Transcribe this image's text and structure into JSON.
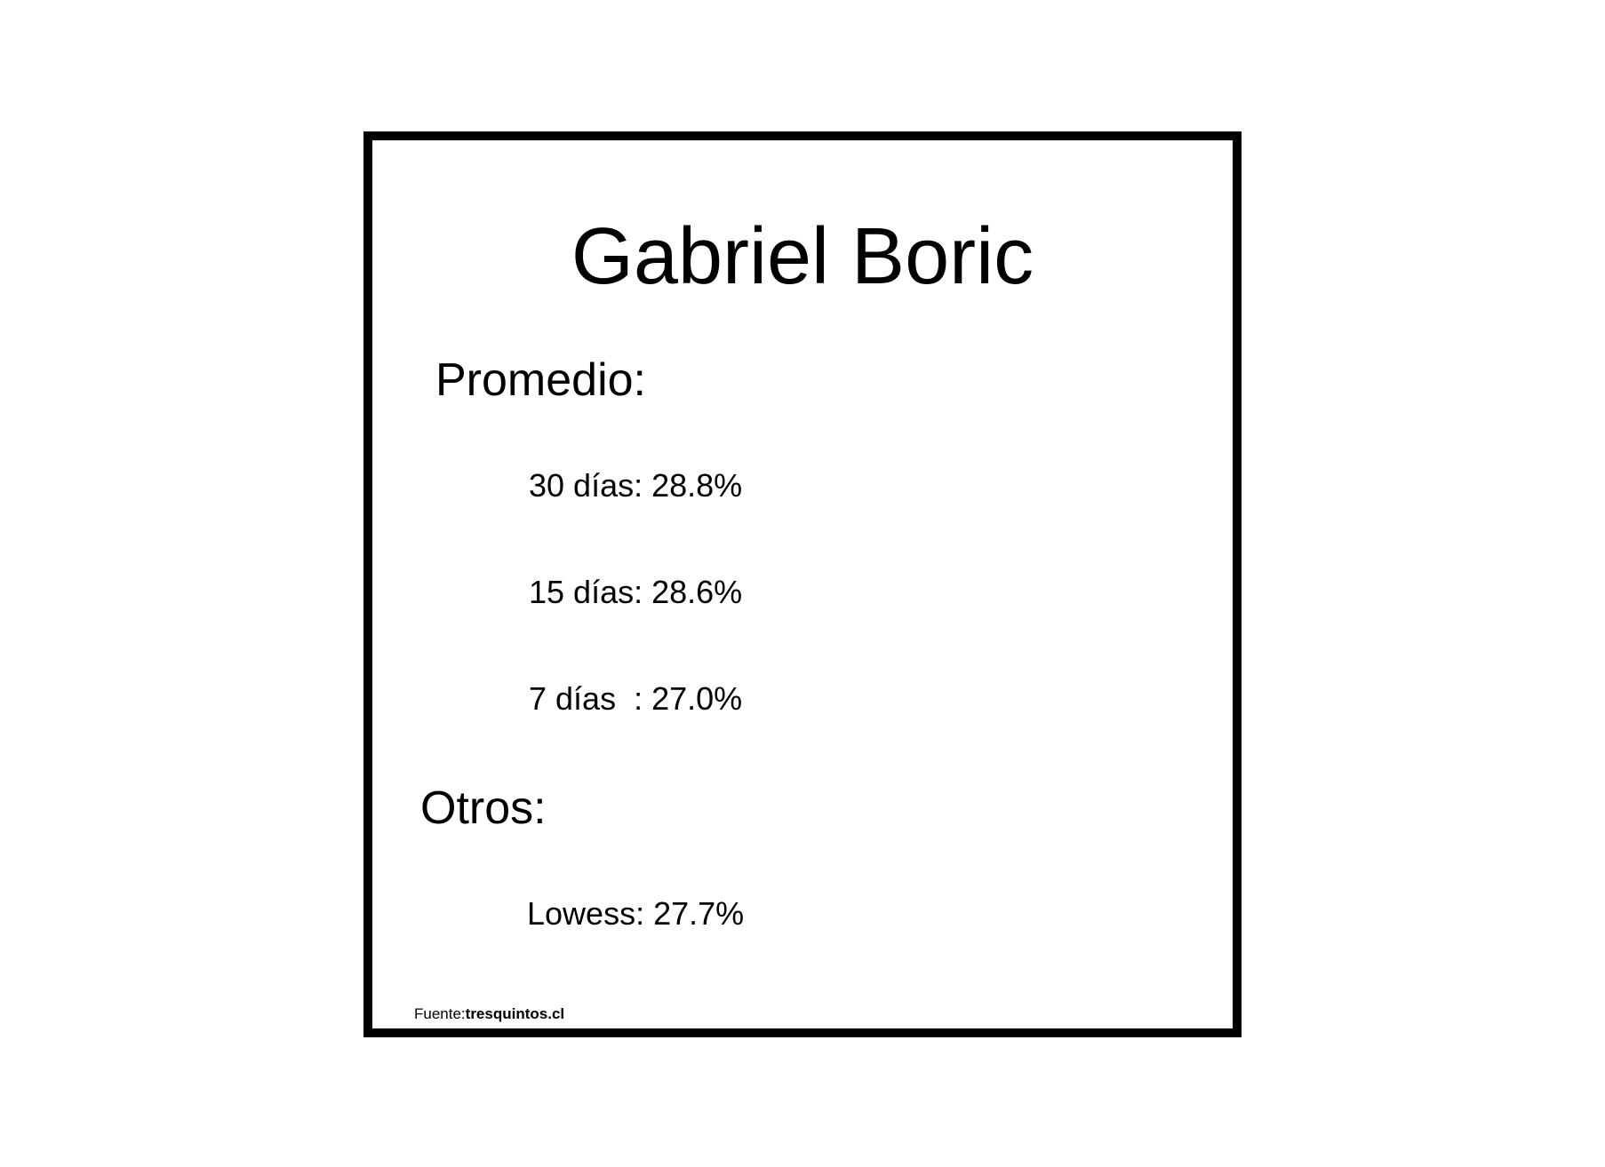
{
  "card": {
    "title": "Gabriel Boric",
    "promedio": {
      "heading": "Promedio:",
      "rows": [
        {
          "label": "30 días: 28.8%"
        },
        {
          "label": "15 días: 28.6%"
        },
        {
          "label": "7 días  : 27.0%"
        }
      ]
    },
    "otros": {
      "heading": "Otros:",
      "rows": [
        {
          "label": "Lowess: 27.7%"
        }
      ]
    },
    "source": {
      "prefix": "Fuente:",
      "name": "tresquintos.cl"
    }
  },
  "colors": {
    "background": "#ffffff",
    "text": "#000000",
    "border": "#000000"
  }
}
